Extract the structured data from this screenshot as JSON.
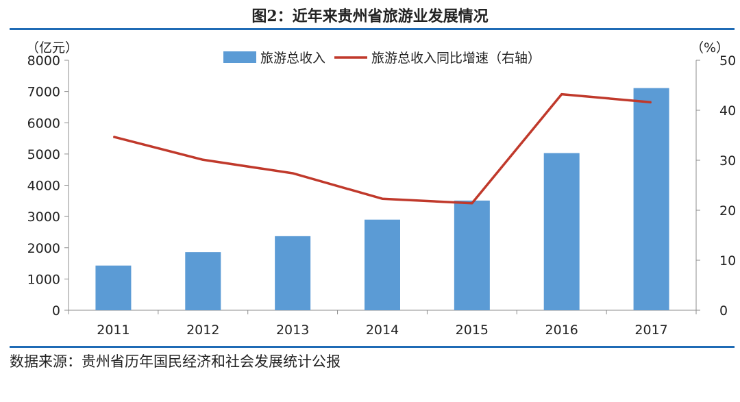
{
  "title": "图2：近年来贵州省旅游业发展情况",
  "source": "数据来源：贵州省历年国民经济和社会发展统计公报",
  "chart_data": {
    "type": "bar",
    "categories": [
      "2011",
      "2012",
      "2013",
      "2014",
      "2015",
      "2016",
      "2017"
    ],
    "series": [
      {
        "name": "旅游总收入",
        "type": "bar",
        "axis": "left",
        "color": "#5b9bd5",
        "values": [
          1430,
          1860,
          2370,
          2900,
          3510,
          5030,
          7110
        ]
      },
      {
        "name": "旅游总收入同比增速（右轴）",
        "type": "line",
        "axis": "right",
        "color": "#c0392b",
        "values": [
          34.7,
          30.1,
          27.4,
          22.3,
          21.4,
          43.2,
          41.6
        ]
      }
    ],
    "ylabel": "（亿元）",
    "y2label": "（%）",
    "ylim": [
      0,
      8000
    ],
    "y2lim": [
      0,
      50
    ],
    "yticks": [
      0,
      1000,
      2000,
      3000,
      4000,
      5000,
      6000,
      7000,
      8000
    ],
    "y2ticks": [
      0,
      10,
      20,
      30,
      40,
      50
    ],
    "grid": false,
    "legend": "top-center"
  }
}
